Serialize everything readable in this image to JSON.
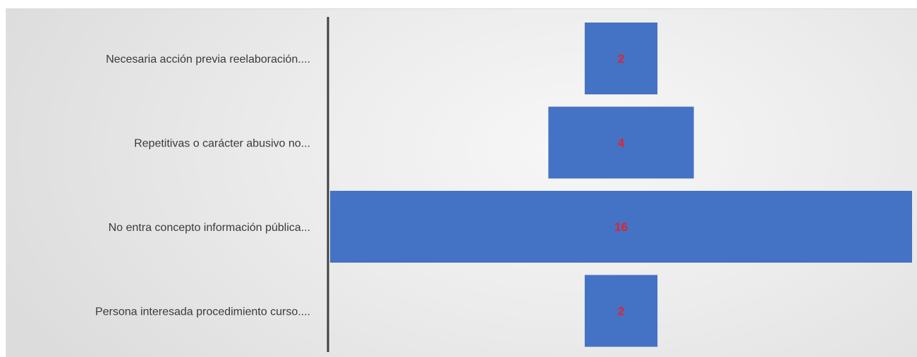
{
  "chart_data": {
    "type": "bar",
    "orientation": "horizontal",
    "layout": "funnel-centered",
    "categories": [
      "Necesaria acción previa reelaboración....",
      "Repetitivas o carácter abusivo no...",
      "No entra concepto información pública...",
      "Persona interesada procedimiento curso...."
    ],
    "values": [
      2,
      4,
      16,
      2
    ],
    "data_labels": [
      "2",
      "4",
      "16",
      "2"
    ],
    "title": "",
    "xlabel": "",
    "ylabel": "",
    "xlim": [
      0,
      16
    ],
    "grid": false,
    "legend": "none",
    "colors": {
      "bar": "#4472c4",
      "value_label": "#e8202a",
      "axis": "#404040",
      "category_label": "#3a3a3a"
    }
  }
}
